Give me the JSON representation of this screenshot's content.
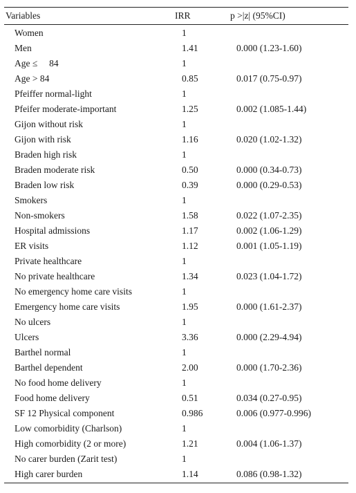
{
  "header": {
    "variables": "Variables",
    "irr": "IRR",
    "p": "p >|z| (95%CI)"
  },
  "rows": [
    {
      "variable": "Women",
      "irr": "1",
      "p": ""
    },
    {
      "variable": "Men",
      "irr": "1.41",
      "p": "0.000 (1.23-1.60)"
    },
    {
      "variable": "Age ≤     84",
      "irr": "1",
      "p": ""
    },
    {
      "variable": "Age > 84",
      "irr": "0.85",
      "p": "0.017 (0.75-0.97)"
    },
    {
      "variable": "Pfeiffer normal-light",
      "irr": "1",
      "p": ""
    },
    {
      "variable": "Pfeifer moderate-important",
      "irr": "1.25",
      "p": "0.002 (1.085-1.44)"
    },
    {
      "variable": "Gijon without risk",
      "irr": "1",
      "p": ""
    },
    {
      "variable": "Gijon with risk",
      "irr": "1.16",
      "p": "0.020 (1.02-1.32)"
    },
    {
      "variable": "Braden high risk",
      "irr": "1",
      "p": ""
    },
    {
      "variable": "Braden moderate risk",
      "irr": "0.50",
      "p": "0.000 (0.34-0.73)"
    },
    {
      "variable": "Braden low risk",
      "irr": "0.39",
      "p": "0.000 (0.29-0.53)"
    },
    {
      "variable": "Smokers",
      "irr": "1",
      "p": ""
    },
    {
      "variable": "Non-smokers",
      "irr": "1.58",
      "p": "0.022 (1.07-2.35)"
    },
    {
      "variable": "Hospital admissions",
      "irr": "1.17",
      "p": "0.002 (1.06-1.29)"
    },
    {
      "variable": "ER visits",
      "irr": "1.12",
      "p": "0.001 (1.05-1.19)"
    },
    {
      "variable": "Private healthcare",
      "irr": "1",
      "p": ""
    },
    {
      "variable": "No private healthcare",
      "irr": "1.34",
      "p": "0.023 (1.04-1.72)"
    },
    {
      "variable": "No emergency home care visits",
      "irr": "1",
      "p": ""
    },
    {
      "variable": "Emergency home care visits",
      "irr": "1.95",
      "p": "0.000 (1.61-2.37)"
    },
    {
      "variable": "No ulcers",
      "irr": "1",
      "p": ""
    },
    {
      "variable": "Ulcers",
      "irr": "3.36",
      "p": "0.000 (2.29-4.94)"
    },
    {
      "variable": "Barthel normal",
      "irr": "1",
      "p": ""
    },
    {
      "variable": "Barthel dependent",
      "irr": "2.00",
      "p": "0.000 (1.70-2.36)"
    },
    {
      "variable": "No food home delivery",
      "irr": "1",
      "p": ""
    },
    {
      "variable": "Food home delivery",
      "irr": "0.51",
      "p": "0.034 (0.27-0.95)"
    },
    {
      "variable": "SF 12 Physical component",
      "irr": "0.986",
      "p": "0.006 (0.977-0.996)"
    },
    {
      "variable": "Low comorbidity (Charlson)",
      "irr": "1",
      "p": ""
    },
    {
      "variable": "High comorbidity (2 or more)",
      "irr": "1.21",
      "p": "0.004 (1.06-1.37)"
    },
    {
      "variable": "No carer burden (Zarit test)",
      "irr": "1",
      "p": ""
    },
    {
      "variable": "High carer burden",
      "irr": "1.14",
      "p": "0.086 (0.98-1.32)"
    }
  ]
}
